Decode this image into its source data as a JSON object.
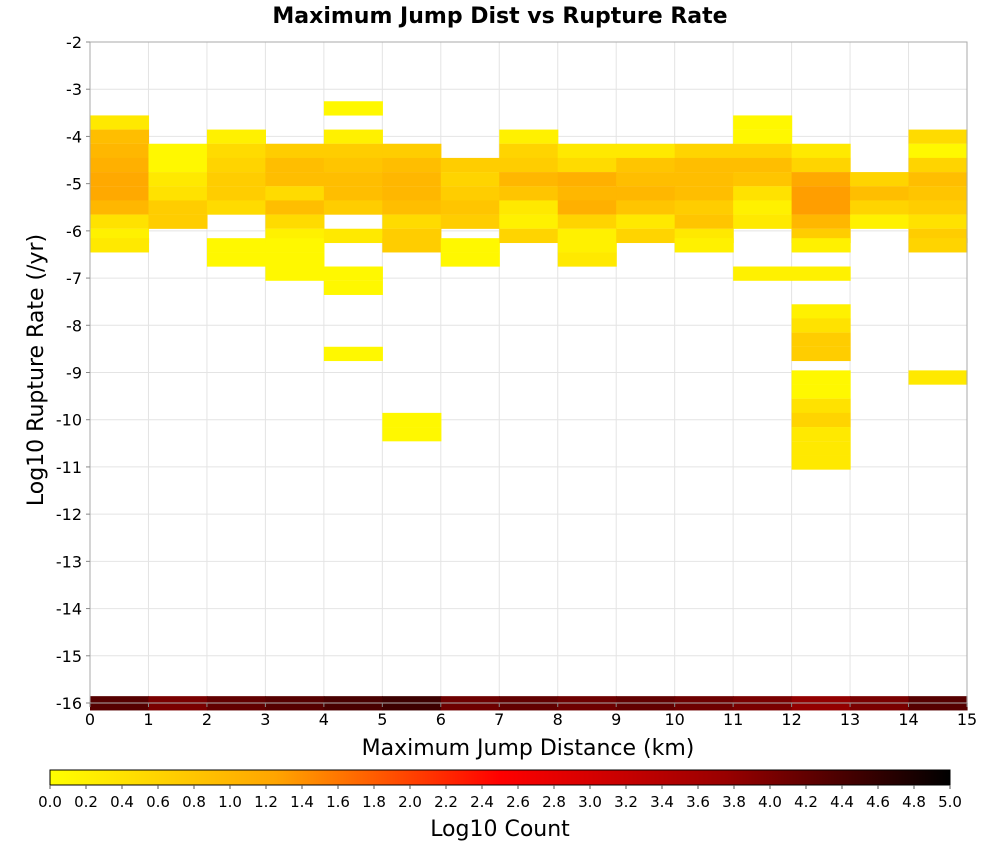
{
  "chart_data": {
    "type": "heatmap",
    "title": "Maximum Jump Dist vs Rupture Rate",
    "xlabel": "Maximum Jump Distance (km)",
    "ylabel": "Log10 Rupture Rate (/yr)",
    "xlim": [
      0,
      15
    ],
    "ylim": [
      -16,
      -2
    ],
    "x_ticks": [
      0,
      1,
      2,
      3,
      4,
      5,
      6,
      7,
      8,
      9,
      10,
      11,
      12,
      13,
      14,
      15
    ],
    "y_ticks": [
      -2,
      -3,
      -4,
      -5,
      -6,
      -7,
      -8,
      -9,
      -10,
      -11,
      -12,
      -13,
      -14,
      -15,
      -16
    ],
    "grid": true,
    "bin_width_x": 1,
    "bin_height_y": 0.29,
    "colorbar": {
      "label": "Log10 Count",
      "range": [
        0,
        5
      ],
      "ticks": [
        "0.0",
        "0.2",
        "0.4",
        "0.6",
        "0.8",
        "1.0",
        "1.2",
        "1.4",
        "1.6",
        "1.8",
        "2.0",
        "2.2",
        "2.4",
        "2.6",
        "2.8",
        "3.0",
        "3.2",
        "3.4",
        "3.6",
        "3.8",
        "4.0",
        "4.2",
        "4.4",
        "4.6",
        "4.8",
        "5.0"
      ],
      "colors": [
        "#ffff00",
        "#ffa500",
        "#ff0000",
        "#990000",
        "#000000"
      ]
    },
    "columns": [
      {
        "x": 0,
        "cells": [
          [
            -3.7,
            0.3
          ],
          [
            -4.0,
            0.9
          ],
          [
            -4.3,
            1.0
          ],
          [
            -4.6,
            1.1
          ],
          [
            -4.9,
            1.2
          ],
          [
            -5.2,
            1.2
          ],
          [
            -5.5,
            1.0
          ],
          [
            -5.8,
            0.4
          ],
          [
            -6.1,
            0.2
          ],
          [
            -6.3,
            0.3
          ],
          [
            -16.0,
            4.3
          ]
        ]
      },
      {
        "x": 1,
        "cells": [
          [
            -4.3,
            0.1
          ],
          [
            -4.6,
            0.1
          ],
          [
            -4.9,
            0.3
          ],
          [
            -5.2,
            0.4
          ],
          [
            -5.5,
            0.7
          ],
          [
            -5.8,
            0.7
          ],
          [
            -16.0,
            4.0
          ]
        ]
      },
      {
        "x": 2,
        "cells": [
          [
            -4.0,
            0.2
          ],
          [
            -4.3,
            0.5
          ],
          [
            -4.6,
            0.6
          ],
          [
            -4.9,
            0.7
          ],
          [
            -5.2,
            0.7
          ],
          [
            -5.5,
            0.5
          ],
          [
            -6.3,
            0.1
          ],
          [
            -6.6,
            0.1
          ],
          [
            -16.0,
            4.2
          ]
        ]
      },
      {
        "x": 3,
        "cells": [
          [
            -4.3,
            0.7
          ],
          [
            -4.6,
            0.9
          ],
          [
            -4.9,
            0.9
          ],
          [
            -5.2,
            0.5
          ],
          [
            -5.5,
            0.9
          ],
          [
            -5.8,
            0.5
          ],
          [
            -6.1,
            0.2
          ],
          [
            -6.3,
            0.1
          ],
          [
            -6.6,
            0.1
          ],
          [
            -6.9,
            0.1
          ],
          [
            -16.0,
            4.3
          ]
        ]
      },
      {
        "x": 4,
        "cells": [
          [
            -3.4,
            0.1
          ],
          [
            -4.0,
            0.2
          ],
          [
            -4.3,
            0.7
          ],
          [
            -4.6,
            0.8
          ],
          [
            -4.9,
            0.9
          ],
          [
            -5.2,
            0.9
          ],
          [
            -5.5,
            0.7
          ],
          [
            -6.1,
            0.3
          ],
          [
            -6.9,
            0.1
          ],
          [
            -7.2,
            0.1
          ],
          [
            -8.6,
            0.1
          ],
          [
            -16.0,
            4.4
          ]
        ]
      },
      {
        "x": 5,
        "cells": [
          [
            -4.3,
            0.7
          ],
          [
            -4.6,
            0.9
          ],
          [
            -4.9,
            1.0
          ],
          [
            -5.2,
            1.0
          ],
          [
            -5.5,
            0.9
          ],
          [
            -5.8,
            0.5
          ],
          [
            -6.1,
            0.7
          ],
          [
            -6.3,
            0.7
          ],
          [
            -10.0,
            0.1
          ],
          [
            -10.3,
            0.1
          ],
          [
            -16.0,
            4.5
          ]
        ]
      },
      {
        "x": 6,
        "cells": [
          [
            -4.6,
            0.7
          ],
          [
            -4.9,
            0.6
          ],
          [
            -5.2,
            0.7
          ],
          [
            -5.5,
            0.8
          ],
          [
            -5.8,
            0.7
          ],
          [
            -6.3,
            0.1
          ],
          [
            -6.6,
            0.1
          ],
          [
            -16.0,
            4.1
          ]
        ]
      },
      {
        "x": 7,
        "cells": [
          [
            -4.0,
            0.2
          ],
          [
            -4.3,
            0.6
          ],
          [
            -4.6,
            0.7
          ],
          [
            -4.9,
            1.0
          ],
          [
            -5.2,
            0.8
          ],
          [
            -5.5,
            0.3
          ],
          [
            -5.8,
            0.2
          ],
          [
            -6.1,
            0.6
          ],
          [
            -16.0,
            4.2
          ]
        ]
      },
      {
        "x": 8,
        "cells": [
          [
            -4.3,
            0.3
          ],
          [
            -4.6,
            0.5
          ],
          [
            -4.9,
            1.1
          ],
          [
            -5.2,
            1.0
          ],
          [
            -5.5,
            1.1
          ],
          [
            -5.8,
            0.6
          ],
          [
            -6.1,
            0.2
          ],
          [
            -6.3,
            0.2
          ],
          [
            -6.6,
            0.3
          ],
          [
            -16.0,
            4.1
          ]
        ]
      },
      {
        "x": 9,
        "cells": [
          [
            -4.3,
            0.3
          ],
          [
            -4.6,
            0.8
          ],
          [
            -4.9,
            0.9
          ],
          [
            -5.2,
            1.0
          ],
          [
            -5.5,
            0.8
          ],
          [
            -5.8,
            0.3
          ],
          [
            -6.1,
            0.6
          ],
          [
            -16.0,
            4.2
          ]
        ]
      },
      {
        "x": 10,
        "cells": [
          [
            -4.3,
            0.6
          ],
          [
            -4.6,
            0.9
          ],
          [
            -4.9,
            0.9
          ],
          [
            -5.2,
            0.9
          ],
          [
            -5.5,
            0.7
          ],
          [
            -5.8,
            0.8
          ],
          [
            -6.1,
            0.3
          ],
          [
            -6.3,
            0.2
          ],
          [
            -16.0,
            4.1
          ]
        ]
      },
      {
        "x": 11,
        "cells": [
          [
            -3.7,
            0.1
          ],
          [
            -4.0,
            0.1
          ],
          [
            -4.3,
            0.6
          ],
          [
            -4.6,
            0.9
          ],
          [
            -4.9,
            0.8
          ],
          [
            -5.2,
            0.4
          ],
          [
            -5.5,
            0.2
          ],
          [
            -5.8,
            0.3
          ],
          [
            -6.9,
            0.2
          ],
          [
            -16.0,
            4.0
          ]
        ]
      },
      {
        "x": 12,
        "cells": [
          [
            -4.3,
            0.3
          ],
          [
            -4.6,
            0.6
          ],
          [
            -4.9,
            1.2
          ],
          [
            -5.2,
            1.3
          ],
          [
            -5.5,
            1.3
          ],
          [
            -5.8,
            1.0
          ],
          [
            -6.1,
            0.7
          ],
          [
            -6.3,
            0.2
          ],
          [
            -6.9,
            0.2
          ],
          [
            -7.7,
            0.2
          ],
          [
            -8.0,
            0.4
          ],
          [
            -8.3,
            0.7
          ],
          [
            -8.6,
            0.7
          ],
          [
            -9.1,
            0.1
          ],
          [
            -9.4,
            0.1
          ],
          [
            -9.7,
            0.4
          ],
          [
            -10.0,
            0.6
          ],
          [
            -10.3,
            0.3
          ],
          [
            -10.6,
            0.3
          ],
          [
            -10.9,
            0.3
          ],
          [
            -16.0,
            3.8
          ]
        ]
      },
      {
        "x": 13,
        "cells": [
          [
            -4.9,
            0.6
          ],
          [
            -5.2,
            0.9
          ],
          [
            -5.5,
            0.6
          ],
          [
            -5.8,
            0.2
          ],
          [
            -16.0,
            4.0
          ]
        ]
      },
      {
        "x": 14,
        "cells": [
          [
            -4.0,
            0.5
          ],
          [
            -4.3,
            0.1
          ],
          [
            -4.6,
            0.6
          ],
          [
            -4.9,
            0.9
          ],
          [
            -5.2,
            0.8
          ],
          [
            -5.5,
            0.7
          ],
          [
            -5.8,
            0.4
          ],
          [
            -6.1,
            0.7
          ],
          [
            -6.3,
            0.6
          ],
          [
            -9.1,
            0.3
          ],
          [
            -16.0,
            4.3
          ]
        ]
      }
    ]
  }
}
